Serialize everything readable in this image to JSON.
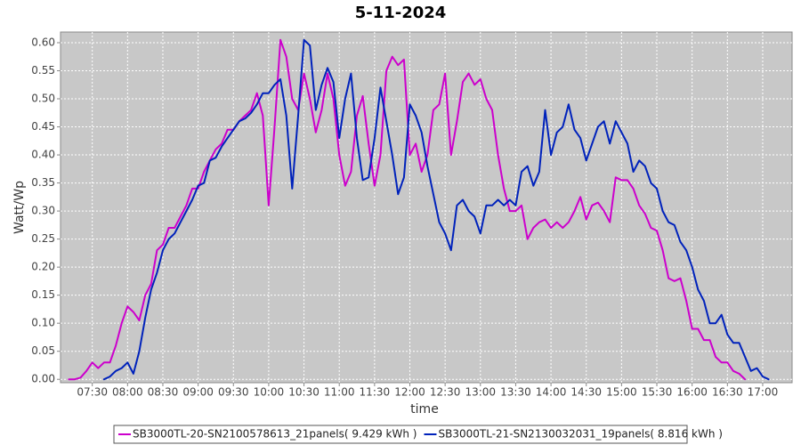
{
  "chart_data": {
    "type": "line",
    "title": "5-11-2024",
    "xlabel": "time",
    "ylabel": "Watt/Wp",
    "xlim": [
      "07:03",
      "17:25"
    ],
    "xticks": [
      "07:30",
      "08:00",
      "08:30",
      "09:00",
      "09:30",
      "10:00",
      "10:30",
      "11:00",
      "11:30",
      "12:00",
      "12:30",
      "13:00",
      "13:30",
      "14:00",
      "14:30",
      "15:00",
      "15:30",
      "16:00",
      "16:30",
      "17:00"
    ],
    "ylim": [
      -0.006,
      0.619
    ],
    "yticks": [
      {
        "value": 0,
        "label": "0.00"
      },
      0.05,
      {
        "value": 0.1,
        "label": "0.10"
      },
      0.15,
      {
        "value": 0.2,
        "label": "0.20"
      },
      0.25,
      {
        "value": 0.3,
        "label": "0.30"
      },
      0.35,
      {
        "value": 0.4,
        "label": "0.40"
      },
      0.45,
      {
        "value": 0.5,
        "label": "0.50"
      },
      0.55,
      {
        "value": 0.6,
        "label": "0.60"
      }
    ],
    "grid": true,
    "legend": "bottom",
    "x": [
      "07:10",
      "07:15",
      "07:20",
      "07:25",
      "07:30",
      "07:35",
      "07:40",
      "07:45",
      "07:50",
      "07:55",
      "08:00",
      "08:05",
      "08:10",
      "08:15",
      "08:20",
      "08:25",
      "08:30",
      "08:35",
      "08:40",
      "08:45",
      "08:50",
      "08:55",
      "09:00",
      "09:05",
      "09:10",
      "09:15",
      "09:20",
      "09:25",
      "09:30",
      "09:35",
      "09:40",
      "09:45",
      "09:50",
      "09:55",
      "10:00",
      "10:05",
      "10:10",
      "10:15",
      "10:20",
      "10:25",
      "10:30",
      "10:35",
      "10:40",
      "10:45",
      "10:50",
      "10:55",
      "11:00",
      "11:05",
      "11:10",
      "11:15",
      "11:20",
      "11:25",
      "11:30",
      "11:35",
      "11:40",
      "11:45",
      "11:50",
      "11:55",
      "12:00",
      "12:05",
      "12:10",
      "12:15",
      "12:20",
      "12:25",
      "12:30",
      "12:35",
      "12:40",
      "12:45",
      "12:50",
      "12:55",
      "13:00",
      "13:05",
      "13:10",
      "13:15",
      "13:20",
      "13:25",
      "13:30",
      "13:35",
      "13:40",
      "13:45",
      "13:50",
      "13:55",
      "14:00",
      "14:05",
      "14:10",
      "14:15",
      "14:20",
      "14:25",
      "14:30",
      "14:35",
      "14:40",
      "14:45",
      "14:50",
      "14:55",
      "15:00",
      "15:05",
      "15:10",
      "15:15",
      "15:20",
      "15:25",
      "15:30",
      "15:35",
      "15:40",
      "15:45",
      "15:50",
      "15:55",
      "16:00",
      "16:05",
      "16:10",
      "16:15",
      "16:20",
      "16:25",
      "16:30",
      "16:35",
      "16:40",
      "16:45",
      "16:50",
      "16:55",
      "17:00",
      "17:05"
    ],
    "series": [
      {
        "name": "SB3000TL-20-SN2100578613_21panels( 9.429 kWh )",
        "color": "#cc00cc",
        "values": [
          0,
          0,
          0.003,
          0.015,
          0.03,
          0.02,
          0.03,
          0.03,
          0.06,
          0.1,
          0.13,
          0.12,
          0.105,
          0.15,
          0.17,
          0.23,
          0.24,
          0.27,
          0.27,
          0.29,
          0.31,
          0.34,
          0.34,
          0.37,
          0.39,
          0.41,
          0.42,
          0.445,
          0.445,
          0.46,
          0.47,
          0.48,
          0.51,
          0.47,
          0.31,
          0.45,
          0.605,
          0.575,
          0.5,
          0.48,
          0.545,
          0.5,
          0.44,
          0.48,
          0.545,
          0.5,
          0.4,
          0.345,
          0.37,
          0.47,
          0.505,
          0.42,
          0.345,
          0.4,
          0.55,
          0.575,
          0.56,
          0.57,
          0.4,
          0.42,
          0.37,
          0.4,
          0.48,
          0.49,
          0.545,
          0.4,
          0.46,
          0.53,
          0.545,
          0.525,
          0.535,
          0.5,
          0.48,
          0.4,
          0.34,
          0.3,
          0.3,
          0.31,
          0.25,
          0.27,
          0.28,
          0.285,
          0.27,
          0.28,
          0.27,
          0.28,
          0.3,
          0.325,
          0.285,
          0.31,
          0.315,
          0.3,
          0.28,
          0.36,
          0.355,
          0.355,
          0.34,
          0.31,
          0.295,
          0.27,
          0.265,
          0.23,
          0.18,
          0.175,
          0.18,
          0.14,
          0.09,
          0.09,
          0.07,
          0.07,
          0.04,
          0.03,
          0.03,
          0.015,
          0.01,
          0,
          null,
          null,
          null,
          null
        ]
      },
      {
        "name": "SB3000TL-21-SN2130032031_19panels( 8.816 kWh )",
        "color": "#0022bb",
        "values": [
          null,
          null,
          null,
          null,
          null,
          null,
          0,
          0.005,
          0.015,
          0.02,
          0.03,
          0.01,
          0.05,
          0.11,
          0.16,
          0.19,
          0.23,
          0.25,
          0.26,
          0.28,
          0.3,
          0.32,
          0.345,
          0.35,
          0.39,
          0.395,
          0.415,
          0.43,
          0.445,
          0.46,
          0.465,
          0.475,
          0.49,
          0.51,
          0.51,
          0.525,
          0.535,
          0.47,
          0.34,
          0.47,
          0.605,
          0.595,
          0.48,
          0.525,
          0.555,
          0.53,
          0.43,
          0.5,
          0.545,
          0.43,
          0.355,
          0.36,
          0.43,
          0.52,
          0.46,
          0.4,
          0.33,
          0.36,
          0.49,
          0.47,
          0.44,
          0.38,
          0.33,
          0.28,
          0.26,
          0.23,
          0.31,
          0.32,
          0.3,
          0.29,
          0.26,
          0.31,
          0.31,
          0.32,
          0.31,
          0.32,
          0.31,
          0.37,
          0.38,
          0.345,
          0.37,
          0.48,
          0.4,
          0.44,
          0.45,
          0.49,
          0.445,
          0.43,
          0.39,
          0.42,
          0.45,
          0.46,
          0.42,
          0.46,
          0.44,
          0.42,
          0.37,
          0.39,
          0.38,
          0.35,
          0.34,
          0.3,
          0.28,
          0.275,
          0.245,
          0.23,
          0.2,
          0.16,
          0.14,
          0.1,
          0.1,
          0.115,
          0.08,
          0.065,
          0.065,
          0.04,
          0.015,
          0.02,
          0.005,
          0
        ]
      }
    ]
  }
}
